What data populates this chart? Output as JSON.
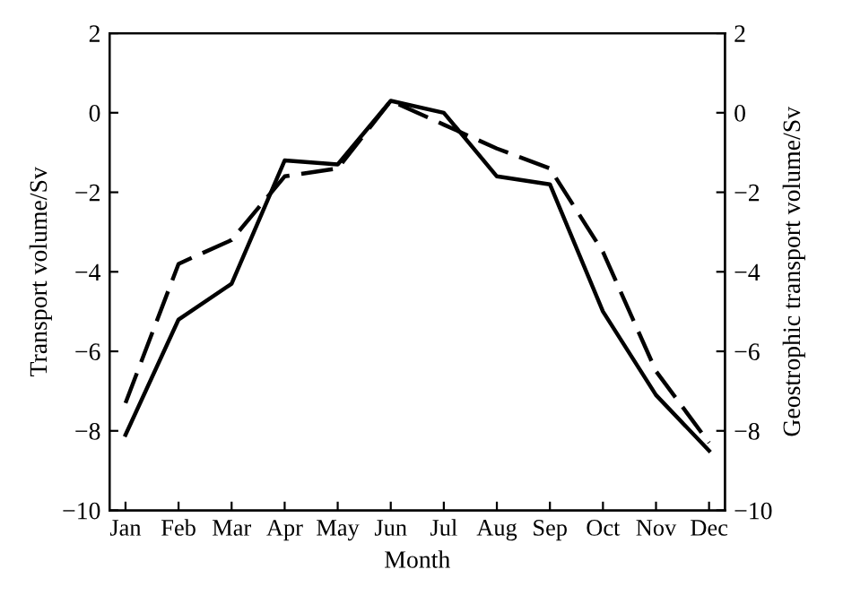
{
  "chart_data": {
    "type": "line",
    "xlabel": "Month",
    "ylabel": "Transport volume/Sv",
    "y2label": "Geostrophic transport volume/Sv",
    "categories": [
      "Jan",
      "Feb",
      "Mar",
      "Apr",
      "May",
      "Jun",
      "Jul",
      "Aug",
      "Sep",
      "Oct",
      "Nov",
      "Dec"
    ],
    "series": [
      {
        "color": "#000000",
        "line_style": "solid",
        "values": [
          -8.1,
          -5.2,
          -4.3,
          -1.2,
          -1.3,
          0.3,
          0.0,
          -1.6,
          -1.8,
          -5.0,
          -7.1,
          -8.5
        ]
      },
      {
        "color": "#000000",
        "line_style": "dashed",
        "values": [
          -7.3,
          -3.8,
          -3.2,
          -1.6,
          -1.4,
          0.3,
          -0.3,
          -0.9,
          -1.4,
          -3.5,
          -6.5,
          -8.3
        ]
      }
    ],
    "ylim": [
      -10,
      2
    ],
    "yticks": [
      -10,
      -8,
      -6,
      -4,
      -2,
      0,
      2
    ],
    "y2lim": [
      -10,
      2
    ],
    "y2ticks": [
      -10,
      -8,
      -6,
      -4,
      -2,
      0,
      2
    ],
    "grid": false
  }
}
